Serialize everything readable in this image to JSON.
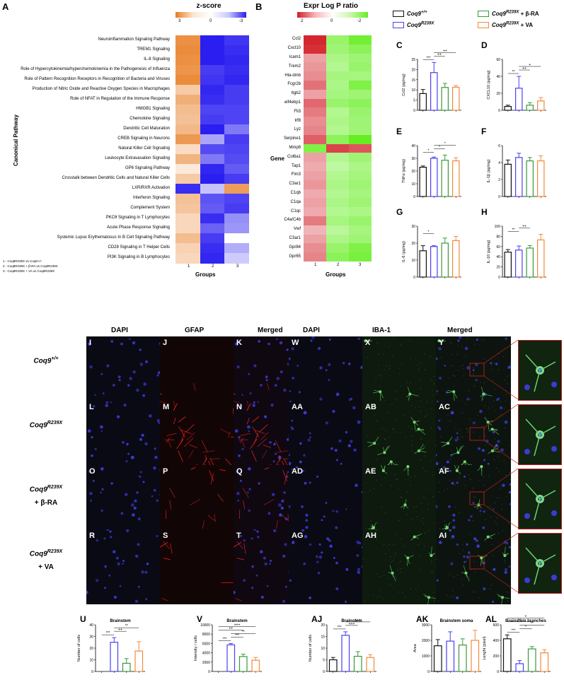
{
  "panel_A": {
    "letter": "A",
    "title": "z-score",
    "scale_ticks": [
      "3",
      "0",
      "-3"
    ],
    "ylabel": "Canonical Pathway",
    "xlabel": "Groups",
    "groups": [
      "1",
      "2",
      "3"
    ],
    "legend_lines": [
      "1 - Coq9R239X vs Coq9+/+",
      "2 - Coq9R239X + β-RA vs Coq9R239X",
      "3 - Coq9R239X + VA vs Coq9R239X"
    ],
    "pathways": [
      "Neuroinflammation Signaling Pathway",
      "TREM1 Signaling",
      "IL-8 Signaling",
      "Role of Hypercytokinemia/hyperchemokinemia in the Pathogenesis of Influenza",
      "Role of Pattern Recognition Receptors in Recognition of Bacteria and Viruses",
      "Production of Nitric Oxide and Reactive Oxygen Species in Macrophages",
      "Role of NFAT in Regulation of the Immune Response",
      "HMGB1 Signaling",
      "Chemokine Signaling",
      "Dendritic Cell Maturation",
      "CREB Signaling in Neurons",
      "Natural Killer Cell Signaling",
      "Leukocyte Extravasation Signaling",
      "GP6 Signaling Pathway",
      "Crosstalk between Dendritic Cells and Natural Killer Cells",
      "LXR/RXR Activation",
      "Interferon Signaling",
      "Complement System",
      "PKCθ Signaling in T Lymphocytes",
      "Acute Phase Response Signaling",
      "Systemic Lupus Erythematosus In B Cell Signaling Pathway",
      "CD28 Signaling in T Helper Cells",
      "PI3K Signaling in B Lymphocytes"
    ],
    "zscores": [
      [
        2.5,
        -3,
        -2.7
      ],
      [
        2.6,
        -3,
        -2.8
      ],
      [
        2.5,
        -3,
        -2.9
      ],
      [
        2.4,
        -2.6,
        -2.8
      ],
      [
        2.6,
        -2.7,
        -2.9
      ],
      [
        1.2,
        -2.9,
        -2.6
      ],
      [
        1.8,
        -2.8,
        -2.6
      ],
      [
        1.5,
        -2.5,
        -2.5
      ],
      [
        1.4,
        -2.6,
        -2.5
      ],
      [
        1.6,
        -3,
        -1.8
      ],
      [
        2.3,
        -1.2,
        -2.6
      ],
      [
        0.8,
        -2.4,
        -2.5
      ],
      [
        1.7,
        -1.8,
        -2.4
      ],
      [
        0.5,
        -2.9,
        -2.2
      ],
      [
        1.2,
        -3,
        -2.6
      ],
      [
        -2.8,
        -0.8,
        2.2
      ],
      [
        1.4,
        -2.3,
        -2.5
      ],
      [
        1.3,
        -2.2,
        -2.6
      ],
      [
        0.9,
        -2.8,
        -1.5
      ],
      [
        0.9,
        -2.1,
        -1.4
      ],
      [
        1.5,
        -2.6,
        0
      ],
      [
        1.0,
        -2.8,
        -1.1
      ],
      [
        0.9,
        -2.9,
        -0.7
      ]
    ]
  },
  "panel_B": {
    "letter": "B",
    "title": "Expr Log P ratio",
    "scale_ticks": [
      "2",
      "0",
      "-2"
    ],
    "ylabel": "Gene",
    "xlabel": "Groups",
    "groups": [
      "1",
      "2",
      "3"
    ],
    "genes": [
      "Ccl2",
      "Cxcl10",
      "Icam1",
      "Trem2",
      "Hla-dmb",
      "Fcgr2b",
      "Itgb2",
      "eif4ebp1",
      "Fli3",
      "Irf8",
      "Lyz",
      "Serpine1",
      "Mmp8",
      "Col6a1",
      "Tap1",
      "Flm3",
      "C3ar1",
      "C1qb",
      "C1qa",
      "C1qc",
      "C4a/C4b",
      "Vwf",
      "C3ar1",
      "Gpr84",
      "Gpr65"
    ],
    "values": [
      [
        2.3,
        -1.6,
        -2.2
      ],
      [
        2.2,
        -1.5,
        -1.8
      ],
      [
        1.0,
        -1.3,
        -1.5
      ],
      [
        1.1,
        -1.2,
        -1.6
      ],
      [
        1.2,
        -1.4,
        -1.4
      ],
      [
        1.5,
        -1.3,
        -2.0
      ],
      [
        1.0,
        -1.4,
        -1.5
      ],
      [
        1.6,
        -1.6,
        -1.8
      ],
      [
        1.4,
        -1.2,
        -1.6
      ],
      [
        1.2,
        -1.3,
        -1.5
      ],
      [
        1.3,
        -1.2,
        -1.5
      ],
      [
        1.7,
        -1.8,
        -2.5
      ],
      [
        -2.0,
        2.0,
        1.8
      ],
      [
        1.0,
        -1.2,
        -1.5
      ],
      [
        0.9,
        -1.0,
        -1.3
      ],
      [
        1.0,
        -1.2,
        -1.4
      ],
      [
        1.1,
        -1.3,
        -1.5
      ],
      [
        0.9,
        -1.2,
        -1.4
      ],
      [
        1.0,
        -1.3,
        -1.5
      ],
      [
        0.9,
        -1.2,
        -1.3
      ],
      [
        1.4,
        -1.4,
        -1.6
      ],
      [
        0.8,
        -1.1,
        -1.4
      ],
      [
        1.0,
        -1.3,
        -1.5
      ],
      [
        1.2,
        -1.6,
        -2.0
      ],
      [
        1.3,
        -1.8,
        -2.1
      ]
    ]
  },
  "legend": {
    "items": [
      {
        "base": "Coq9",
        "sup": "+/+",
        "suffix": "",
        "color": "#111111"
      },
      {
        "base": "Coq9",
        "sup": "R239X",
        "suffix": " + β-RA",
        "color": "#3a9a3a"
      },
      {
        "base": "Coq9",
        "sup": "R239X",
        "suffix": "",
        "color": "#4b3ff0"
      },
      {
        "base": "Coq9",
        "sup": "R239X",
        "suffix": " + VA",
        "color": "#f08a3c"
      }
    ]
  },
  "group_colors": [
    "#111111",
    "#4b3ff0",
    "#3a9a3a",
    "#f08a3c"
  ],
  "bar_panels": [
    {
      "letter": "C",
      "ylabel": "Ccl2 (pg/mg)",
      "yticks": [
        "0",
        "5",
        "10",
        "15",
        "20",
        "25"
      ],
      "ymax": 25,
      "values": [
        8.2,
        18.5,
        11.2,
        11.3
      ],
      "errors": [
        2.0,
        5.0,
        2.0,
        0.8
      ],
      "sig": [
        "***",
        "++",
        "++"
      ]
    },
    {
      "letter": "D",
      "ylabel": "CXCL10 (pg/mg)",
      "yticks": [
        "0",
        "20",
        "40",
        "60"
      ],
      "ymax": 60,
      "values": [
        4.5,
        26,
        6,
        11
      ],
      "errors": [
        1.5,
        14,
        3,
        4
      ],
      "sig": [
        "**",
        "++",
        "+"
      ]
    },
    {
      "letter": "E",
      "ylabel": "TNFα (pg/mg)",
      "yticks": [
        "0",
        "10",
        "20",
        "30",
        "40"
      ],
      "ymax": 40,
      "values": [
        23,
        30,
        28.5,
        28
      ],
      "errors": [
        1,
        1,
        4,
        2.5
      ],
      "sig": [
        "*",
        "*",
        "*"
      ]
    },
    {
      "letter": "F",
      "ylabel": "IL-1β (pg/mg)",
      "yticks": [
        "0",
        "2",
        "4",
        "6"
      ],
      "ymax": 6,
      "values": [
        3.8,
        4.6,
        4.2,
        4.2
      ],
      "errors": [
        0.5,
        0.5,
        0.4,
        0.6
      ],
      "sig": []
    },
    {
      "letter": "G",
      "ylabel": "IL-6 (pg/mg)",
      "yticks": [
        "0",
        "10",
        "20",
        "30"
      ],
      "ymax": 30,
      "values": [
        15.5,
        18,
        20,
        21.5
      ],
      "errors": [
        3,
        0.5,
        3,
        2.5
      ],
      "sig": [
        "*"
      ]
    },
    {
      "letter": "H",
      "ylabel": "IL-10 (pg/mg)",
      "yticks": [
        "0",
        "20",
        "40",
        "60",
        "80",
        "100"
      ],
      "ymax": 100,
      "values": [
        49,
        53,
        57,
        73
      ],
      "errors": [
        5,
        8,
        5,
        11
      ],
      "sig": [
        "**",
        "++"
      ]
    }
  ],
  "micro_left": {
    "headers": [
      "DAPI",
      "GFAP",
      "Merged"
    ],
    "rows": [
      {
        "label_base": "Coq9",
        "label_sup": "+/+",
        "label_suffix": "",
        "panels": [
          "I",
          "J",
          "K"
        ],
        "gfap": 0.05
      },
      {
        "label_base": "Coq9",
        "label_sup": "R239X",
        "label_suffix": "",
        "panels": [
          "L",
          "M",
          "N"
        ],
        "gfap": 0.9
      },
      {
        "label_base": "Coq9",
        "label_sup": "R239X",
        "label_suffix": "+ β-RA",
        "panels": [
          "O",
          "P",
          "Q"
        ],
        "gfap": 0.35
      },
      {
        "label_base": "Coq9",
        "label_sup": "R239X",
        "label_suffix": "+ VA",
        "panels": [
          "R",
          "S",
          "T"
        ],
        "gfap": 0.15
      }
    ]
  },
  "micro_right": {
    "headers": [
      "DAPI",
      "IBA-1",
      "Merged"
    ],
    "rows": [
      {
        "panels": [
          "W",
          "X",
          "Y"
        ],
        "iba": 0.3
      },
      {
        "panels": [
          "AA",
          "AB",
          "AC"
        ],
        "iba": 0.8
      },
      {
        "panels": [
          "AD",
          "AE",
          "AF"
        ],
        "iba": 0.5
      },
      {
        "panels": [
          "AG",
          "AH",
          "AI"
        ],
        "iba": 0.45
      }
    ]
  },
  "bottom_panels": [
    {
      "letter": "U",
      "title": "Brainstem",
      "ylabel": "Number of cells",
      "yticks": [
        "0",
        "10",
        "20",
        "30",
        "40"
      ],
      "ymax": 40,
      "values": [
        0,
        25,
        7,
        17.5
      ],
      "errors": [
        0,
        4,
        4,
        8
      ],
      "sig": [
        "***",
        "++",
        "**"
      ]
    },
    {
      "letter": "V",
      "title": "Brainstem",
      "ylabel": "Intensity / cells",
      "yticks": [
        "0",
        "2000",
        "4000",
        "6000",
        "8000",
        "10000"
      ],
      "ymax": 10000,
      "values": [
        0,
        5700,
        3200,
        2400
      ],
      "errors": [
        0,
        300,
        500,
        600
      ],
      "sig": [
        "***",
        "***",
        "**",
        "++",
        "+++"
      ]
    },
    {
      "letter": "AJ",
      "title": "Brainstem",
      "ylabel": "Number of cells",
      "yticks": [
        "0",
        "5",
        "10",
        "15",
        "20"
      ],
      "ymax": 20,
      "values": [
        5,
        15.5,
        6.5,
        6
      ],
      "errors": [
        1,
        1.5,
        2,
        1.2
      ],
      "sig": [
        "***",
        "+++",
        "+++"
      ]
    },
    {
      "letter": "AK",
      "title": "Brainstem soma",
      "ylabel": "Area",
      "yticks": [
        "0",
        "1000",
        "2000",
        "3000"
      ],
      "ymax": 3000,
      "values": [
        1650,
        1950,
        1700,
        2000
      ],
      "errors": [
        400,
        600,
        400,
        650
      ],
      "sig": []
    },
    {
      "letter": "AL",
      "title": "Brainstem branches",
      "ylabel": "Lenght (pixel)",
      "yticks": [
        "0",
        "200",
        "400",
        "600"
      ],
      "ymax": 600,
      "values": [
        420,
        100,
        290,
        240
      ],
      "errors": [
        50,
        40,
        30,
        40
      ],
      "sig": [
        "***",
        "*",
        "**",
        "++",
        "+"
      ]
    }
  ]
}
